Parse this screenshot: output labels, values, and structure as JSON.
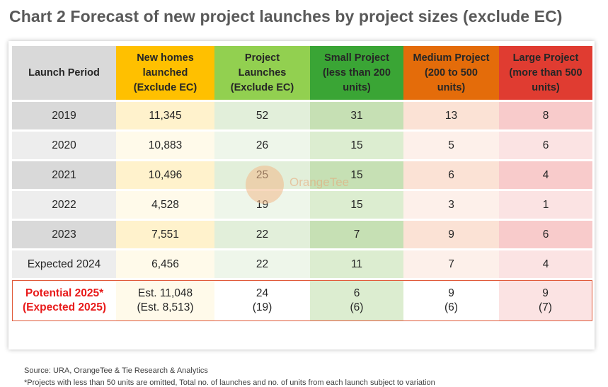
{
  "title": "Chart 2 Forecast of new project launches by project sizes (exclude EC)",
  "chart_data": {
    "type": "table",
    "columns": [
      "Launch Period",
      "New homes\nlaunched\n(Exclude EC)",
      "Project\nLaunches\n(Exclude EC)",
      "Small Project\n(less than 200\nunits)",
      "Medium Project\n(200 to 500\nunits)",
      "Large Project\n(more than 500\nunits)"
    ],
    "rows": [
      [
        "2019",
        "11,345",
        "52",
        "31",
        "13",
        "8"
      ],
      [
        "2020",
        "10,883",
        "26",
        "15",
        "5",
        "6"
      ],
      [
        "2021",
        "10,496",
        "25",
        "15",
        "6",
        "4"
      ],
      [
        "2022",
        "4,528",
        "19",
        "15",
        "3",
        "1"
      ],
      [
        "2023",
        "7,551",
        "22",
        "7",
        "9",
        "6"
      ],
      [
        "Expected 2024",
        "6,456",
        "22",
        "11",
        "7",
        "4"
      ],
      [
        "Potential 2025*\n(Expected 2025)",
        "Est. 11,048\n(Est. 8,513)",
        "24\n(19)",
        "6\n(6)",
        "9\n(6)",
        "9\n(7)"
      ]
    ]
  },
  "source": "Source: URA, OrangeTee & Tie Research & Analytics",
  "note": "*Projects with less than 50 units are omitted, Total no. of launches and no. of units from each launch subject to variation",
  "watermark": {
    "text": "OrangeTee"
  },
  "colors": {
    "new_homes": "#ffc000",
    "project_launches": "#92d050",
    "small": "#3aa535",
    "medium": "#e46c0a",
    "large": "#e03c31",
    "highlight": "#e81a1a"
  }
}
